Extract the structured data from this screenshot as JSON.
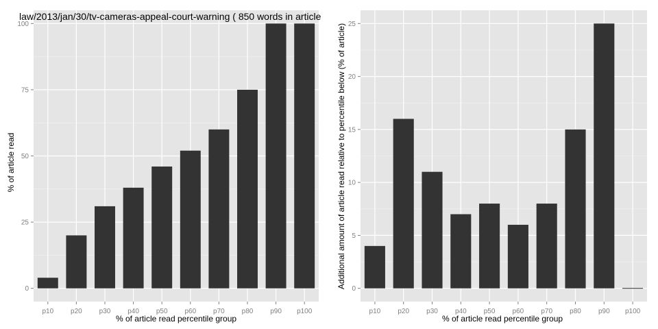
{
  "colors": {
    "panel_background": "#e5e5e5",
    "major_grid": "#ffffff",
    "minor_grid": "#f2f2f2",
    "bar_fill": "#333333",
    "tick_label": "#7f7f7f",
    "text": "#000000"
  },
  "chart_data": [
    {
      "type": "bar",
      "title": "law/2013/jan/30/tv-cameras-appeal-court-warning ( 850 words in article",
      "xlabel": "% of article read percentile group",
      "ylabel": "% of article read",
      "categories": [
        "p10",
        "p20",
        "p30",
        "p40",
        "p50",
        "p60",
        "p70",
        "p80",
        "p90",
        "p100"
      ],
      "values": [
        4,
        20,
        31,
        38,
        46,
        52,
        60,
        75,
        100,
        100
      ],
      "ylim": [
        -5,
        105
      ],
      "yticks": [
        0,
        25,
        50,
        75,
        100
      ],
      "ytick_labels": [
        "0",
        "25",
        "50",
        "75",
        "100"
      ],
      "grid": true,
      "legend": "none"
    },
    {
      "type": "bar",
      "title": "",
      "xlabel": "% of article read percentile group",
      "ylabel": "Additional amount of article read relative to percentile below (% of article)",
      "categories": [
        "p10",
        "p20",
        "p30",
        "p40",
        "p50",
        "p60",
        "p70",
        "p80",
        "p90",
        "p100"
      ],
      "values": [
        4,
        16,
        11,
        7,
        8,
        6,
        8,
        15,
        25,
        0
      ],
      "ylim": [
        -1.25,
        26.25
      ],
      "yticks": [
        0,
        5,
        10,
        15,
        20,
        25
      ],
      "ytick_labels": [
        "0",
        "5",
        "10",
        "15",
        "20",
        "25"
      ],
      "grid": true,
      "legend": "none"
    }
  ]
}
